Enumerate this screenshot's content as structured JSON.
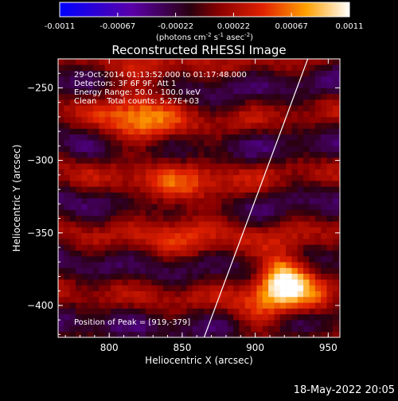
{
  "chart_data": {
    "type": "heatmap",
    "title": "Reconstructed RHESSI Image",
    "xlabel": "Heliocentric X (arcsec)",
    "ylabel": "Heliocentric Y (arcsec)",
    "xlim": [
      765,
      958
    ],
    "ylim": [
      -422,
      -230
    ],
    "xticks": [
      800,
      850,
      900,
      950
    ],
    "yticks": [
      -250,
      -300,
      -350,
      -400
    ],
    "colorbar": {
      "min": -0.0011,
      "max": 0.0011,
      "ticks": [
        "-0.0011",
        "-0.00067",
        "-0.00022",
        "0.00022",
        "0.00067",
        "0.0011"
      ],
      "unit_text": "(photons cm",
      "unit_sup1": "-2",
      "unit_mid": " s",
      "unit_sup2": "-1",
      "unit_mid2": " asec",
      "unit_sup3": "-2",
      "unit_end": ")"
    },
    "annotations": [
      "29-Oct-2014 01:13:52.000 to 01:17:48.000",
      "Detectors: 3F 6F 9F, Att 1",
      "Energy Range: 50.0 - 100.0 keV",
      "Clean    Total counts: 5.27E+03"
    ],
    "peak_label": "Position of Peak = [919,-379]",
    "peak": [
      919,
      -379
    ],
    "limb_line": [
      [
        865,
        -422
      ],
      [
        936,
        -230
      ]
    ],
    "grid_step_arcsec": 4
  },
  "timestamp": "18-May-2022 20:05"
}
